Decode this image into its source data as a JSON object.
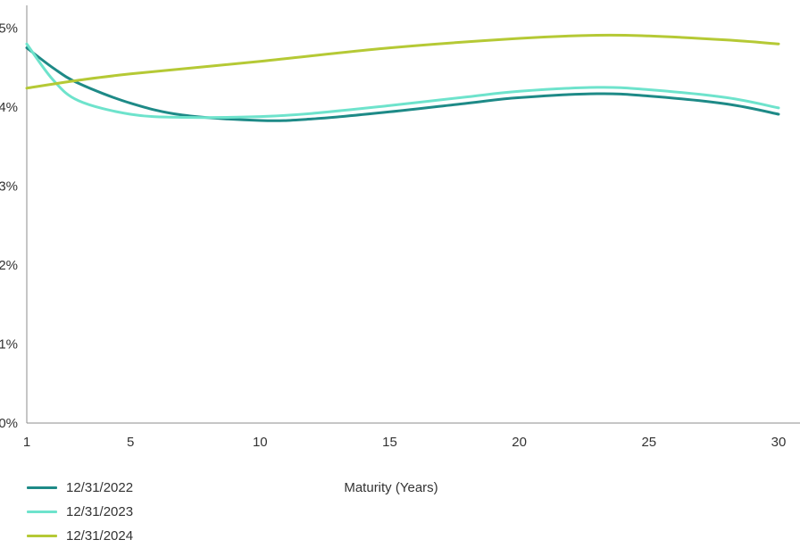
{
  "chart_data": {
    "type": "line",
    "xlabel": "Maturity (Years)",
    "ylabel": "",
    "x_ticks": [
      "1",
      "5",
      "10",
      "15",
      "20",
      "25",
      "30"
    ],
    "y_ticks": [
      "0%",
      "1%",
      "2%",
      "3%",
      "4%",
      "5%"
    ],
    "xlim": [
      1,
      30
    ],
    "ylim": [
      0,
      5.3
    ],
    "grid": false,
    "legend_position": "bottom-left",
    "series": [
      {
        "name": "12/31/2022",
        "color": "#1e8a87",
        "points": [
          [
            1,
            4.75
          ],
          [
            2,
            4.5
          ],
          [
            3,
            4.3
          ],
          [
            5,
            4.05
          ],
          [
            7,
            3.9
          ],
          [
            10,
            3.83
          ],
          [
            12,
            3.85
          ],
          [
            15,
            3.94
          ],
          [
            18,
            4.05
          ],
          [
            20,
            4.12
          ],
          [
            23,
            4.17
          ],
          [
            25,
            4.14
          ],
          [
            28,
            4.04
          ],
          [
            30,
            3.91
          ]
        ]
      },
      {
        "name": "12/31/2023",
        "color": "#6ee3cc",
        "points": [
          [
            1,
            4.8
          ],
          [
            2,
            4.35
          ],
          [
            3,
            4.08
          ],
          [
            5,
            3.91
          ],
          [
            7,
            3.87
          ],
          [
            10,
            3.88
          ],
          [
            12,
            3.92
          ],
          [
            15,
            4.02
          ],
          [
            18,
            4.13
          ],
          [
            20,
            4.2
          ],
          [
            23,
            4.25
          ],
          [
            25,
            4.22
          ],
          [
            28,
            4.12
          ],
          [
            30,
            3.99
          ]
        ]
      },
      {
        "name": "12/31/2024",
        "color": "#b5c935",
        "points": [
          [
            1,
            4.24
          ],
          [
            3,
            4.34
          ],
          [
            5,
            4.42
          ],
          [
            10,
            4.58
          ],
          [
            15,
            4.75
          ],
          [
            20,
            4.87
          ],
          [
            23,
            4.91
          ],
          [
            25,
            4.9
          ],
          [
            28,
            4.85
          ],
          [
            30,
            4.8
          ]
        ]
      }
    ]
  }
}
